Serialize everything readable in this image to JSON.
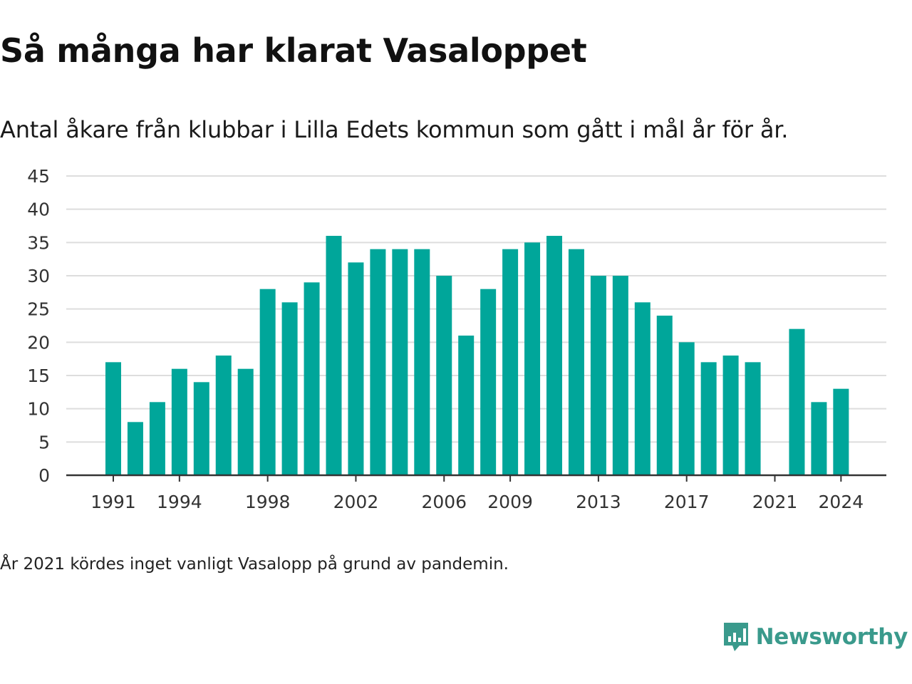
{
  "header": {
    "title": "Så många har klarat Vasaloppet",
    "subtitle": "Antal åkare från klubbar i Lilla Edets kommun som gått i mål år för år."
  },
  "footer": {
    "note": "År 2021 kördes inget vanligt Vasalopp på grund av pandemin.",
    "brand": "Newsworthy",
    "brand_icon": "chart-bubble-icon"
  },
  "colors": {
    "bar": "#00a69a",
    "grid": "#dddddd",
    "axis": "#333333",
    "brand": "#3a9a8c"
  },
  "chart_data": {
    "type": "bar",
    "title": "Så många har klarat Vasaloppet",
    "subtitle": "Antal åkare från klubbar i Lilla Edets kommun som gått i mål år för år.",
    "xlabel": "",
    "ylabel": "",
    "categories": [
      1991,
      1992,
      1993,
      1994,
      1995,
      1996,
      1997,
      1998,
      1999,
      2000,
      2001,
      2002,
      2003,
      2004,
      2005,
      2006,
      2007,
      2008,
      2009,
      2010,
      2011,
      2012,
      2013,
      2014,
      2015,
      2016,
      2017,
      2018,
      2019,
      2020,
      2021,
      2022,
      2023,
      2024
    ],
    "values": [
      17,
      8,
      11,
      16,
      14,
      18,
      16,
      28,
      26,
      29,
      36,
      32,
      34,
      34,
      34,
      30,
      21,
      28,
      34,
      35,
      36,
      34,
      30,
      30,
      26,
      24,
      20,
      17,
      18,
      17,
      null,
      22,
      11,
      13
    ],
    "ylim": [
      0,
      45
    ],
    "yticks": [
      0,
      5,
      10,
      15,
      20,
      25,
      30,
      35,
      40,
      45
    ],
    "xticks": [
      1991,
      1994,
      1998,
      2002,
      2006,
      2009,
      2013,
      2017,
      2021,
      2024
    ],
    "grid": true,
    "legend": "none"
  }
}
